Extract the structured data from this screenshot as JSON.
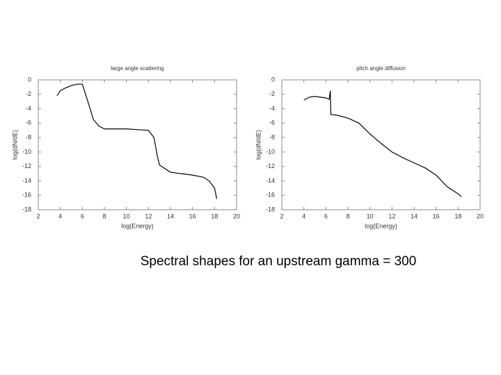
{
  "chart_data": [
    {
      "type": "line",
      "title": "large angle scattering",
      "x_label": "log(Energy)",
      "y_label": "log(dN/dE)",
      "x": [
        3.7,
        4,
        4.5,
        5,
        5.5,
        6,
        6.5,
        7,
        7.5,
        8,
        9,
        10,
        11,
        12,
        12.5,
        12.8,
        13,
        14,
        15,
        16,
        17,
        17.5,
        18,
        18.2
      ],
      "values": [
        -2.2,
        -1.5,
        -1.1,
        -0.8,
        -0.6,
        -0.6,
        -3,
        -5.5,
        -6.4,
        -6.8,
        -6.8,
        -6.8,
        -6.9,
        -7,
        -8,
        -10.5,
        -11.8,
        -12.8,
        -13,
        -13.2,
        -13.5,
        -14,
        -15,
        -16.5
      ],
      "color": "#000000",
      "xlim": [
        2,
        20
      ],
      "xticks": [
        2,
        4,
        6,
        8,
        10,
        12,
        14,
        16,
        18,
        20
      ],
      "ylim": [
        -18,
        0
      ],
      "yticks": [
        0,
        -2,
        -4,
        -6,
        -8,
        -10,
        -12,
        -14,
        -16,
        -18
      ]
    },
    {
      "type": "line",
      "title": "pitch angle diffusion",
      "x_label": "log(Energy)",
      "y_label": "log(dN/dE)",
      "x": [
        4,
        4.5,
        5,
        6,
        6.3,
        6.4,
        6.45,
        7,
        8,
        9,
        10,
        11,
        12,
        13,
        14,
        15,
        16,
        17,
        18,
        18.3
      ],
      "values": [
        -2.8,
        -2.4,
        -2.3,
        -2.5,
        -2.7,
        -1.5,
        -4.8,
        -4.9,
        -5.3,
        -6,
        -7.5,
        -8.8,
        -10,
        -10.8,
        -11.5,
        -12.2,
        -13.2,
        -14.8,
        -15.8,
        -16.2
      ],
      "color": "#000000",
      "xlim": [
        2,
        20
      ],
      "xticks": [
        2,
        4,
        6,
        8,
        10,
        12,
        14,
        16,
        18,
        20
      ],
      "ylim": [
        -18,
        0
      ],
      "yticks": [
        0,
        -2,
        -4,
        -6,
        -8,
        -10,
        -12,
        -14,
        -16,
        -18
      ]
    }
  ],
  "caption": "Spectral shapes for an upstream gamma = 300"
}
